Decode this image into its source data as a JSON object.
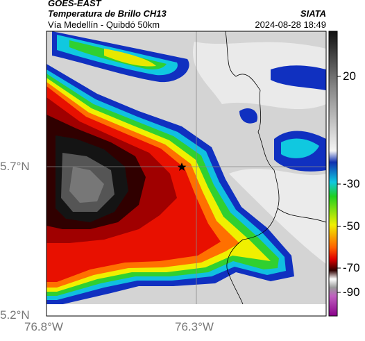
{
  "header": {
    "satellite": "GOES-EAST",
    "product": "Temperatura de Brillo CH13",
    "agency": "SIATA",
    "region": "Vía Medellín - Quibdó 50km",
    "timestamp": "2024-08-28 18:49"
  },
  "axes": {
    "lat_labels": [
      "5.7°N",
      "5.2°N"
    ],
    "lon_labels": [
      "76.8°W",
      "76.3°W"
    ]
  },
  "colorbar": {
    "ticks": [
      20,
      -30,
      -50,
      -70,
      -90
    ]
  }
}
